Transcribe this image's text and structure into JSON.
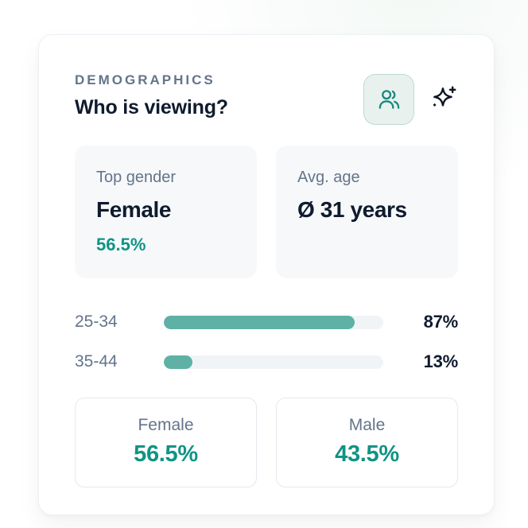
{
  "header": {
    "eyebrow": "DEMOGRAPHICS",
    "title": "Who is viewing?",
    "actions": {
      "audience_icon": "users-icon",
      "ai_icon": "sparkles-icon"
    }
  },
  "summary_cards": [
    {
      "label": "Top gender",
      "value": "Female",
      "percent": "56.5%"
    },
    {
      "label": "Avg. age",
      "value": "Ø 31 years"
    }
  ],
  "chart_data": {
    "type": "bar",
    "orientation": "horizontal",
    "categories": [
      "25-34",
      "35-44"
    ],
    "values": [
      87,
      13
    ],
    "value_labels": [
      "87%",
      "13%"
    ],
    "xlim": [
      0,
      100
    ],
    "bar_color": "#5eb1a4",
    "track_color": "#f1f4f6",
    "grid": false,
    "legend": false
  },
  "gender_split": [
    {
      "label": "Female",
      "value": "56.5%"
    },
    {
      "label": "Male",
      "value": "43.5%"
    }
  ],
  "colors": {
    "accent_teal_text": "#0f9485",
    "bar_teal": "#5eb1a4",
    "text_dark": "#0f1b2e",
    "text_muted": "#64748b",
    "users_button_bg": "#e8f1ee",
    "users_button_border": "#bedad3"
  }
}
